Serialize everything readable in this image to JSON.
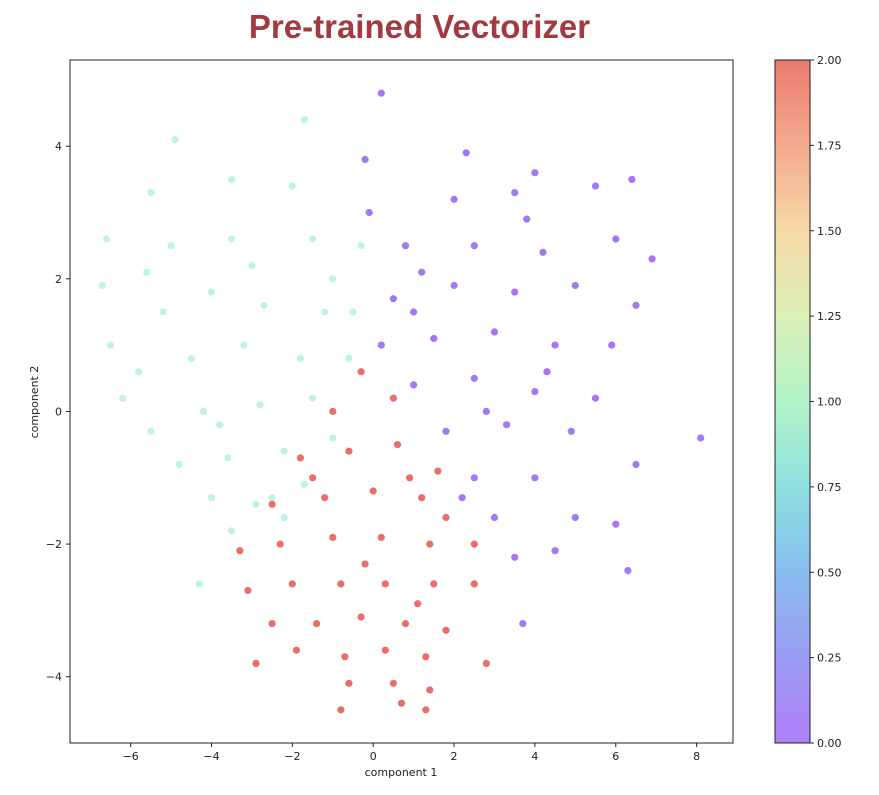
{
  "colors": {
    "title": "#a33a40",
    "cluster_0": "#7b3ff0",
    "cluster_1": "#a8f0c8",
    "cluster_2": "#e0322c"
  },
  "chart_data": {
    "type": "scatter",
    "title": "Pre-trained Vectorizer",
    "xlabel": "component 1",
    "ylabel": "component 2",
    "xlim": [
      -7.5,
      8.9
    ],
    "ylim": [
      -5.0,
      5.3
    ],
    "xticks": [
      -6,
      -4,
      -2,
      0,
      2,
      4,
      6,
      8
    ],
    "yticks": [
      -4,
      -2,
      0,
      2,
      4
    ],
    "xtick_labels": [
      "−6",
      "−4",
      "−2",
      "0",
      "2",
      "4",
      "6",
      "8"
    ],
    "ytick_labels": [
      "−4",
      "−2",
      "0",
      "2",
      "4"
    ],
    "grid": false,
    "colorbar": {
      "colormap": "rainbow",
      "range": [
        0.0,
        2.0
      ],
      "ticks": [
        0.0,
        0.25,
        0.5,
        0.75,
        1.0,
        1.25,
        1.5,
        1.75,
        2.0
      ],
      "tick_labels": [
        "0.00",
        "0.25",
        "0.50",
        "0.75",
        "1.00",
        "1.25",
        "1.50",
        "1.75",
        "2.00"
      ]
    },
    "series": [
      {
        "cluster_value": 0,
        "points": [
          [
            0.2,
            4.8
          ],
          [
            -0.2,
            3.8
          ],
          [
            2.3,
            3.9
          ],
          [
            4.0,
            3.6
          ],
          [
            6.4,
            3.5
          ],
          [
            2.0,
            3.2
          ],
          [
            3.5,
            3.3
          ],
          [
            5.5,
            3.4
          ],
          [
            0.8,
            2.5
          ],
          [
            2.5,
            2.5
          ],
          [
            4.2,
            2.4
          ],
          [
            6.9,
            2.3
          ],
          [
            0.5,
            1.7
          ],
          [
            2.0,
            1.9
          ],
          [
            3.5,
            1.8
          ],
          [
            5.0,
            1.9
          ],
          [
            6.5,
            1.6
          ],
          [
            0.2,
            1.0
          ],
          [
            1.5,
            1.1
          ],
          [
            3.0,
            1.2
          ],
          [
            4.5,
            1.0
          ],
          [
            5.9,
            1.0
          ],
          [
            1.0,
            0.4
          ],
          [
            2.5,
            0.5
          ],
          [
            4.0,
            0.3
          ],
          [
            5.5,
            0.2
          ],
          [
            1.8,
            -0.3
          ],
          [
            3.3,
            -0.2
          ],
          [
            4.9,
            -0.3
          ],
          [
            8.1,
            -0.4
          ],
          [
            2.5,
            -1.0
          ],
          [
            4.0,
            -1.0
          ],
          [
            6.5,
            -0.8
          ],
          [
            3.0,
            -1.6
          ],
          [
            5.0,
            -1.6
          ],
          [
            6.0,
            -1.7
          ],
          [
            3.5,
            -2.2
          ],
          [
            4.5,
            -2.1
          ],
          [
            6.3,
            -2.4
          ],
          [
            3.7,
            -3.2
          ],
          [
            -0.1,
            3.0
          ],
          [
            1.2,
            2.1
          ],
          [
            2.8,
            0.0
          ],
          [
            1.0,
            1.5
          ],
          [
            3.8,
            2.9
          ],
          [
            6.0,
            2.6
          ],
          [
            2.2,
            -1.3
          ],
          [
            4.3,
            0.6
          ]
        ]
      },
      {
        "cluster_value": 1,
        "points": [
          [
            -4.9,
            4.1
          ],
          [
            -1.7,
            4.4
          ],
          [
            -6.6,
            2.6
          ],
          [
            -5.5,
            3.3
          ],
          [
            -3.5,
            3.5
          ],
          [
            -2.0,
            3.4
          ],
          [
            -6.7,
            1.9
          ],
          [
            -5.0,
            2.5
          ],
          [
            -3.5,
            2.6
          ],
          [
            -1.5,
            2.6
          ],
          [
            -0.3,
            2.5
          ],
          [
            -6.5,
            1.0
          ],
          [
            -5.2,
            1.5
          ],
          [
            -4.0,
            1.8
          ],
          [
            -2.7,
            1.6
          ],
          [
            -1.2,
            1.5
          ],
          [
            -0.5,
            1.5
          ],
          [
            -5.8,
            0.6
          ],
          [
            -4.5,
            0.8
          ],
          [
            -3.2,
            1.0
          ],
          [
            -1.8,
            0.8
          ],
          [
            -0.6,
            0.8
          ],
          [
            -5.5,
            -0.3
          ],
          [
            -4.2,
            0.0
          ],
          [
            -2.8,
            0.1
          ],
          [
            -1.5,
            0.2
          ],
          [
            -4.8,
            -0.8
          ],
          [
            -3.6,
            -0.7
          ],
          [
            -2.2,
            -0.6
          ],
          [
            -1.0,
            -0.4
          ],
          [
            -4.0,
            -1.3
          ],
          [
            -2.5,
            -1.3
          ],
          [
            -1.7,
            -1.1
          ],
          [
            -3.5,
            -1.8
          ],
          [
            -4.3,
            -2.6
          ],
          [
            -2.9,
            -1.4
          ],
          [
            -5.6,
            2.1
          ],
          [
            -3.0,
            2.2
          ],
          [
            -1.0,
            2.0
          ],
          [
            -6.2,
            0.2
          ],
          [
            -2.2,
            -1.6
          ],
          [
            -3.8,
            -0.2
          ]
        ]
      },
      {
        "cluster_value": 2,
        "points": [
          [
            -0.3,
            0.6
          ],
          [
            -1.0,
            0.0
          ],
          [
            0.5,
            0.2
          ],
          [
            -1.8,
            -0.7
          ],
          [
            -0.6,
            -0.6
          ],
          [
            0.6,
            -0.5
          ],
          [
            1.6,
            -0.9
          ],
          [
            -2.5,
            -1.4
          ],
          [
            -1.2,
            -1.3
          ],
          [
            0.0,
            -1.2
          ],
          [
            1.2,
            -1.3
          ],
          [
            1.8,
            -1.6
          ],
          [
            -3.3,
            -2.1
          ],
          [
            -2.3,
            -2.0
          ],
          [
            -1.0,
            -1.9
          ],
          [
            0.2,
            -1.9
          ],
          [
            1.4,
            -2.0
          ],
          [
            2.5,
            -2.0
          ],
          [
            -3.1,
            -2.7
          ],
          [
            -2.0,
            -2.6
          ],
          [
            -0.8,
            -2.6
          ],
          [
            0.3,
            -2.6
          ],
          [
            1.5,
            -2.6
          ],
          [
            2.5,
            -2.6
          ],
          [
            -2.5,
            -3.2
          ],
          [
            -1.4,
            -3.2
          ],
          [
            -0.3,
            -3.1
          ],
          [
            0.8,
            -3.2
          ],
          [
            1.8,
            -3.3
          ],
          [
            -1.9,
            -3.6
          ],
          [
            -0.7,
            -3.7
          ],
          [
            0.3,
            -3.6
          ],
          [
            1.3,
            -3.7
          ],
          [
            2.8,
            -3.8
          ],
          [
            -2.9,
            -3.8
          ],
          [
            -0.6,
            -4.1
          ],
          [
            0.5,
            -4.1
          ],
          [
            1.4,
            -4.2
          ],
          [
            -0.8,
            -4.5
          ],
          [
            0.7,
            -4.4
          ],
          [
            1.3,
            -4.5
          ],
          [
            -1.5,
            -1.0
          ],
          [
            0.9,
            -1.0
          ],
          [
            -0.2,
            -2.3
          ],
          [
            1.1,
            -2.9
          ]
        ]
      }
    ]
  }
}
